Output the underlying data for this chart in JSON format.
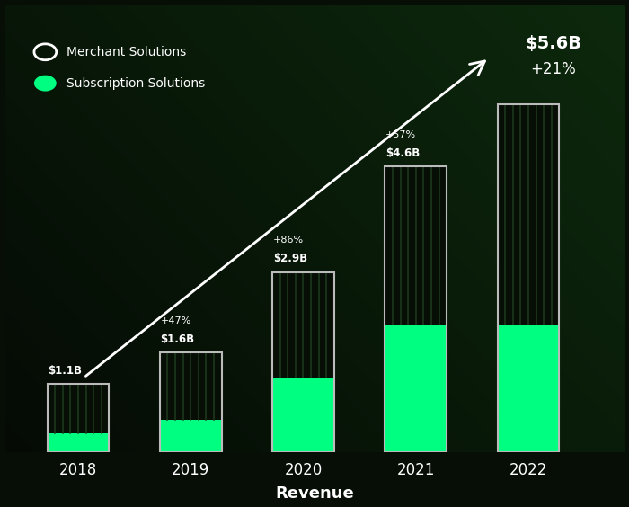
{
  "years": [
    "2018",
    "2019",
    "2020",
    "2021",
    "2022"
  ],
  "total_values": [
    1.1,
    1.6,
    2.9,
    4.6,
    5.6
  ],
  "subscription_values": [
    0.3,
    0.52,
    1.2,
    2.05,
    2.05
  ],
  "labels": [
    "$1.1B",
    "$1.6B",
    "$2.9B",
    "$4.6B",
    "$5.6B"
  ],
  "growth": [
    "",
    "+47%",
    "+86%",
    "+57%",
    "+21%"
  ],
  "bar_color_merchant": "#060e06",
  "bar_color_subscription": "#00ff80",
  "text_color": "#ffffff",
  "bg_color": "#060e06",
  "xlabel": "Revenue",
  "legend_merchant": "Merchant Solutions",
  "legend_subscription": "Subscription Solutions",
  "ylim": [
    0,
    7.2
  ],
  "bar_width": 0.55,
  "num_stripes": 7
}
